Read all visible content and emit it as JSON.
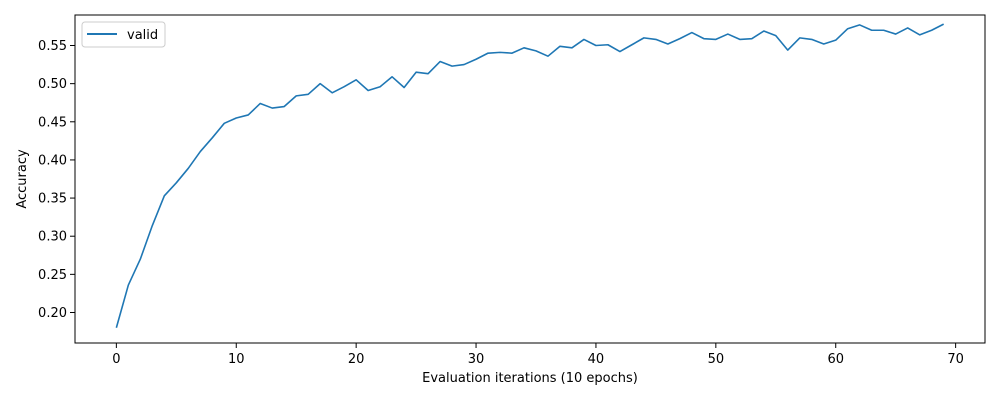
{
  "chart_data": {
    "type": "line",
    "title": "",
    "xlabel": "Evaluation iterations (10 epochs)",
    "ylabel": "Accuracy",
    "xlim": [
      -3.45,
      72.45
    ],
    "ylim": [
      0.16,
      0.59
    ],
    "xticks": [
      0,
      10,
      20,
      30,
      40,
      50,
      60,
      70
    ],
    "yticks": [
      0.2,
      0.25,
      0.3,
      0.35,
      0.4,
      0.45,
      0.5,
      0.55
    ],
    "xtick_labels": [
      "0",
      "10",
      "20",
      "30",
      "40",
      "50",
      "60",
      "70"
    ],
    "ytick_labels": [
      "0.20",
      "0.25",
      "0.30",
      "0.35",
      "0.40",
      "0.45",
      "0.50",
      "0.55"
    ],
    "grid": false,
    "legend_position": "top-left",
    "series": [
      {
        "name": "valid",
        "color": "#1f77b4",
        "x": [
          0,
          1,
          2,
          3,
          4,
          5,
          6,
          7,
          8,
          9,
          10,
          11,
          12,
          13,
          14,
          15,
          16,
          17,
          18,
          19,
          20,
          21,
          22,
          23,
          24,
          25,
          26,
          27,
          28,
          29,
          30,
          31,
          32,
          33,
          34,
          35,
          36,
          37,
          38,
          39,
          40,
          41,
          42,
          43,
          44,
          45,
          46,
          47,
          48,
          49,
          50,
          51,
          52,
          53,
          54,
          55,
          56,
          57,
          58,
          59,
          60,
          61,
          62,
          63,
          64,
          65,
          66,
          67,
          68,
          69
        ],
        "y": [
          0.18,
          0.236,
          0.27,
          0.314,
          0.353,
          0.37,
          0.389,
          0.411,
          0.429,
          0.448,
          0.455,
          0.459,
          0.474,
          0.468,
          0.47,
          0.484,
          0.486,
          0.5,
          0.488,
          0.496,
          0.505,
          0.491,
          0.496,
          0.509,
          0.495,
          0.515,
          0.513,
          0.529,
          0.523,
          0.525,
          0.532,
          0.54,
          0.541,
          0.54,
          0.547,
          0.543,
          0.536,
          0.549,
          0.547,
          0.558,
          0.55,
          0.551,
          0.542,
          0.551,
          0.56,
          0.558,
          0.552,
          0.559,
          0.567,
          0.559,
          0.558,
          0.565,
          0.558,
          0.559,
          0.569,
          0.563,
          0.544,
          0.56,
          0.558,
          0.552,
          0.557,
          0.572,
          0.577,
          0.57,
          0.57,
          0.565,
          0.573,
          0.564,
          0.57,
          0.578
        ]
      }
    ]
  }
}
